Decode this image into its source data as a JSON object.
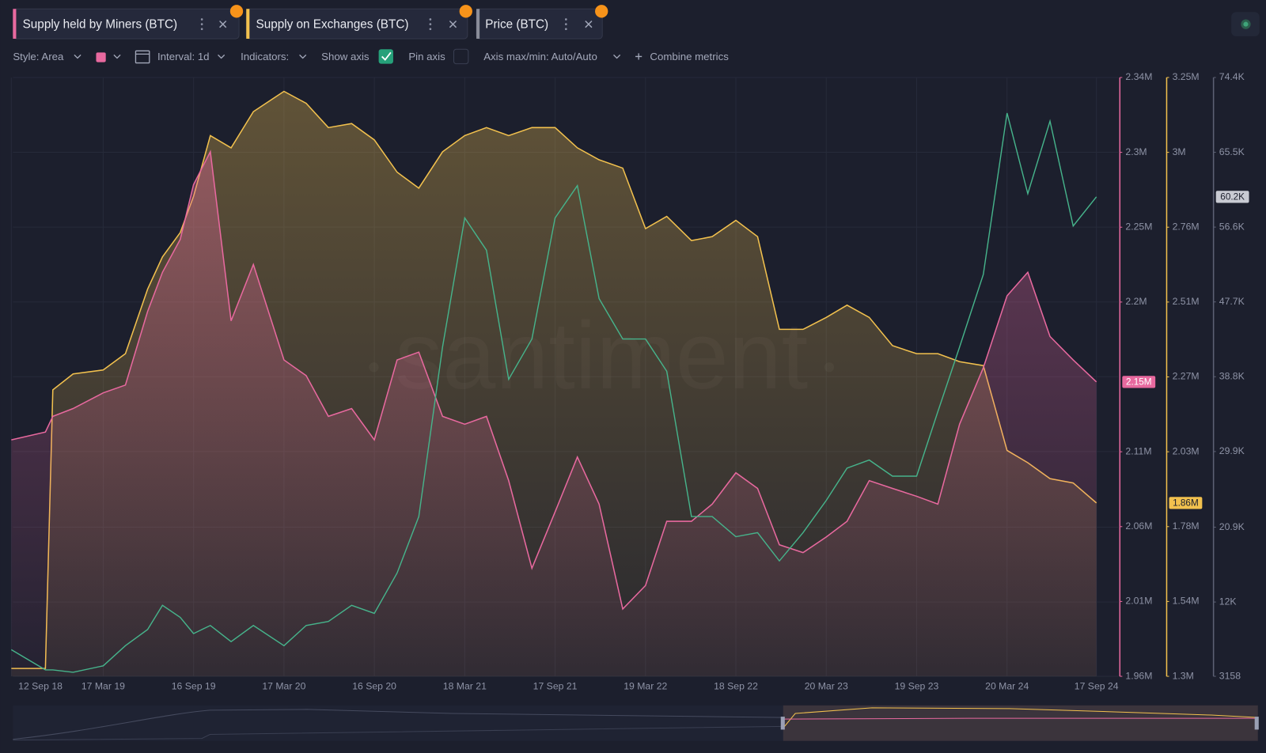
{
  "tabs_note_free": null,
  "toolbar": {
    "style": "Style: Area",
    "interval": "Interval: 1d",
    "indicators": "Indicators:",
    "show_axis": "Show axis",
    "pin_axis": "Pin axis",
    "axis_range": "Axis max/min: Auto/Auto",
    "combine": "Combine metrics"
  },
  "watermark": "santiment",
  "chart_data": {
    "type": "area",
    "x": [
      "2018-09-12",
      "2018-11-20",
      "2018-12-05",
      "2019-01-15",
      "2019-03-17",
      "2019-05-01",
      "2019-06-15",
      "2019-07-15",
      "2019-08-20",
      "2019-09-16",
      "2019-10-20",
      "2019-12-01",
      "2020-01-15",
      "2020-03-17",
      "2020-05-01",
      "2020-06-15",
      "2020-08-01",
      "2020-09-16",
      "2020-11-01",
      "2020-12-15",
      "2021-02-01",
      "2021-03-18",
      "2021-05-01",
      "2021-06-15",
      "2021-08-01",
      "2021-09-17",
      "2021-11-01",
      "2021-12-15",
      "2022-02-01",
      "2022-03-19",
      "2022-05-01",
      "2022-06-20",
      "2022-08-01",
      "2022-09-18",
      "2022-11-01",
      "2022-12-15",
      "2023-02-01",
      "2023-03-20",
      "2023-05-01",
      "2023-06-15",
      "2023-08-01",
      "2023-09-19",
      "2023-11-01",
      "2023-12-15",
      "2024-02-01",
      "2024-03-20",
      "2024-05-01",
      "2024-06-15",
      "2024-08-01",
      "2024-09-17"
    ],
    "xlim": [
      "2018-09-12",
      "2024-09-17"
    ],
    "xticks": [
      {
        "value": "2018-09-12",
        "label": "12 Sep 18"
      },
      {
        "value": "2019-03-17",
        "label": "17 Mar 19"
      },
      {
        "value": "2019-09-16",
        "label": "16 Sep 19"
      },
      {
        "value": "2020-03-17",
        "label": "17 Mar 20"
      },
      {
        "value": "2020-09-16",
        "label": "16 Sep 20"
      },
      {
        "value": "2021-03-18",
        "label": "18 Mar 21"
      },
      {
        "value": "2021-09-17",
        "label": "17 Sep 21"
      },
      {
        "value": "2022-03-19",
        "label": "19 Mar 22"
      },
      {
        "value": "2022-09-18",
        "label": "18 Sep 22"
      },
      {
        "value": "2023-03-20",
        "label": "20 Mar 23"
      },
      {
        "value": "2023-09-19",
        "label": "19 Sep 23"
      },
      {
        "value": "2024-03-20",
        "label": "20 Mar 24"
      },
      {
        "value": "2024-09-17",
        "label": "17 Sep 24"
      }
    ],
    "ylim": [
      1962000,
      2344400
    ],
    "yticks": [
      {
        "value": 1962000,
        "label": "1.96M"
      },
      {
        "value": 2009800,
        "label": "2.01M"
      },
      {
        "value": 2057600,
        "label": "2.06M"
      },
      {
        "value": 2105400,
        "label": "2.11M"
      },
      {
        "value": 2201000,
        "label": "2.2M"
      },
      {
        "value": 2248800,
        "label": "2.25M"
      },
      {
        "value": 2296600,
        "label": "2.3M"
      },
      {
        "value": 2344400,
        "label": "2.34M"
      }
    ],
    "y2lim": [
      1295500,
      3245100
    ],
    "y2ticks": [
      {
        "value": 1295500,
        "label": "1.3M"
      },
      {
        "value": 1539200,
        "label": "1.54M"
      },
      {
        "value": 1782900,
        "label": "1.78M"
      },
      {
        "value": 2026600,
        "label": "2.03M"
      },
      {
        "value": 2270300,
        "label": "2.27M"
      },
      {
        "value": 2514000,
        "label": "2.51M"
      },
      {
        "value": 2757700,
        "label": "2.76M"
      },
      {
        "value": 3001400,
        "label": "3M"
      },
      {
        "value": 3245100,
        "label": "3.25M"
      }
    ],
    "y3lim": [
      3158,
      74400
    ],
    "y3ticks": [
      3158,
      {
        "value": 12000,
        "label": "12K"
      },
      {
        "value": 20900,
        "label": "20.9K"
      },
      {
        "value": 29900,
        "label": "29.9K"
      },
      {
        "value": 38800,
        "label": "38.8K"
      },
      {
        "value": 47700,
        "label": "47.7K"
      },
      {
        "value": 56600,
        "label": "56.6K"
      },
      {
        "value": 65500,
        "label": "65.5K"
      },
      {
        "value": 74400,
        "label": "74.4K"
      }
    ],
    "grid": true,
    "series": [
      {
        "name": "Supply held by Miners (BTC)",
        "type": "area",
        "axis": "y",
        "color": "#e8699f",
        "values": [
          2113000,
          2118000,
          2128000,
          2133000,
          2143000,
          2148000,
          2195000,
          2220000,
          2241000,
          2276000,
          2297000,
          2189000,
          2225000,
          2164000,
          2154000,
          2128000,
          2133000,
          2113000,
          2164000,
          2169000,
          2128000,
          2123000,
          2128000,
          2087000,
          2031000,
          2067000,
          2102000,
          2072000,
          2005000,
          2020000,
          2061000,
          2061000,
          2072000,
          2092000,
          2082000,
          2046000,
          2041000,
          2051000,
          2061000,
          2087000,
          2082000,
          2077000,
          2072000,
          2123000,
          2159000,
          2205000,
          2220000,
          2179000,
          2164000,
          2150000
        ],
        "value_labels": [
          null,
          null,
          null,
          null,
          null,
          null,
          null,
          null,
          null,
          null,
          null,
          null,
          null,
          null,
          null,
          null,
          null,
          null,
          null,
          null,
          null,
          null,
          null,
          null,
          null,
          null,
          null,
          null,
          null,
          null,
          null,
          null,
          null,
          null,
          null,
          null,
          null,
          null,
          null,
          null,
          null,
          null,
          null,
          null,
          null,
          null,
          null,
          null,
          null,
          "2.15M"
        ]
      },
      {
        "name": "Supply on Exchanges (BTC)",
        "type": "area",
        "axis": "y2",
        "color": "#f2c14e",
        "values": [
          1321000,
          1321000,
          2228000,
          2280000,
          2293000,
          2346000,
          2556000,
          2661000,
          2740000,
          2858000,
          3056000,
          3016000,
          3134000,
          3200000,
          3161000,
          3082000,
          3095000,
          3042000,
          2937000,
          2885000,
          3003000,
          3056000,
          3082000,
          3056000,
          3082000,
          3082000,
          3016000,
          2977000,
          2950000,
          2753000,
          2793000,
          2714000,
          2727000,
          2780000,
          2727000,
          2425000,
          2425000,
          2464000,
          2504000,
          2464000,
          2372000,
          2346000,
          2346000,
          2320000,
          2307000,
          2031000,
          1991000,
          1939000,
          1925000,
          1860000
        ],
        "value_labels": [
          null,
          null,
          null,
          null,
          null,
          null,
          null,
          null,
          null,
          null,
          null,
          null,
          null,
          null,
          null,
          null,
          null,
          null,
          null,
          null,
          null,
          null,
          null,
          null,
          null,
          null,
          null,
          null,
          null,
          null,
          null,
          null,
          null,
          null,
          null,
          null,
          null,
          null,
          null,
          null,
          null,
          null,
          null,
          null,
          null,
          null,
          null,
          null,
          null,
          "1.86M"
        ]
      },
      {
        "name": "Price (BTC)",
        "type": "line",
        "axis": "y3",
        "color": "#46b38b",
        "values": [
          6330,
          3930,
          3930,
          3640,
          4410,
          6810,
          8730,
          11610,
          10170,
          8250,
          9210,
          7290,
          9210,
          6810,
          9210,
          9690,
          11610,
          10650,
          15450,
          22170,
          42330,
          57690,
          53850,
          38490,
          43290,
          57690,
          61530,
          48090,
          43290,
          43290,
          39450,
          22170,
          22170,
          19770,
          20250,
          16890,
          20250,
          24090,
          27930,
          28890,
          26970,
          26970,
          34650,
          42330,
          50970,
          70170,
          60570,
          69210,
          56730,
          60200
        ],
        "value_labels": [
          null,
          null,
          null,
          null,
          null,
          null,
          null,
          null,
          null,
          null,
          null,
          null,
          null,
          null,
          null,
          null,
          null,
          null,
          null,
          null,
          null,
          null,
          null,
          null,
          null,
          null,
          null,
          null,
          null,
          null,
          null,
          null,
          null,
          null,
          null,
          null,
          null,
          null,
          null,
          null,
          null,
          null,
          null,
          null,
          null,
          null,
          null,
          null,
          null,
          "60.2K"
        ]
      }
    ]
  }
}
